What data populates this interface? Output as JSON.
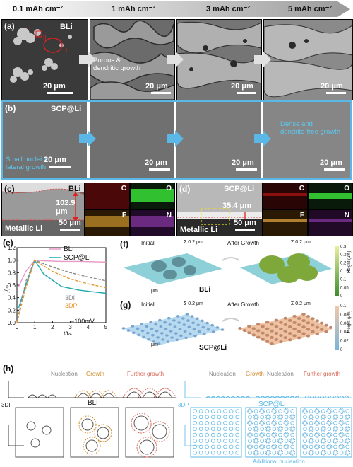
{
  "header": {
    "capacities": [
      "0.1 mAh cm⁻²",
      "1 mAh cm⁻²",
      "3 mAh cm⁻²",
      "5 mAh cm⁻²"
    ]
  },
  "panel_a": {
    "label": "(a)",
    "sample": "BLi",
    "note": "Porous &\ndendritic growth",
    "scale": "20 μm",
    "marks": [
      "I",
      "II",
      "II"
    ]
  },
  "panel_b": {
    "label": "(b)",
    "sample": "SCP@Li",
    "note_start": "Small nuclei &\nlateral growth",
    "note_end": "Dense and\ndendrite-free growth",
    "scale": "20 μm"
  },
  "panel_c": {
    "label": "(c)",
    "sample": "BLi",
    "thickness": "102.9\nμm",
    "substrate": "Metallic Li",
    "scale": "50 μm",
    "elements": [
      "C",
      "O",
      "F",
      "N"
    ]
  },
  "panel_d": {
    "label": "(d)",
    "sample": "SCP@Li",
    "thickness": "35.4 μm",
    "substrate": "Metallic Li",
    "scale": "50 μm",
    "elements": [
      "C",
      "O",
      "F",
      "N"
    ]
  },
  "panel_e": {
    "label": "(e)",
    "annotation": "−100mV",
    "models": [
      "3DI",
      "3DP"
    ],
    "chart_data": {
      "type": "line",
      "xlabel": "t/tₘ",
      "ylabel": "j/jₘ",
      "xlim": [
        0,
        5
      ],
      "ylim": [
        0,
        1.2
      ],
      "xticks": [
        0,
        1,
        2,
        3,
        4,
        5
      ],
      "yticks": [
        0.0,
        0.2,
        0.4,
        0.6,
        0.8,
        1.0,
        1.2
      ],
      "series": [
        {
          "name": "BLi",
          "color": "#e89ac7",
          "x": [
            0.1,
            0.5,
            1.0,
            1.5,
            2.5,
            3.5,
            5.0
          ],
          "y": [
            0.58,
            0.82,
            1.0,
            0.99,
            0.98,
            0.98,
            0.97
          ]
        },
        {
          "name": "SCP@Li",
          "color": "#1fa8b3",
          "x": [
            0.1,
            0.5,
            1.0,
            1.5,
            2.5,
            3.5,
            5.0
          ],
          "y": [
            0.24,
            0.6,
            1.0,
            0.78,
            0.58,
            0.52,
            0.47
          ]
        },
        {
          "name": "3DI",
          "color": "#8a8a8a",
          "dash": true,
          "x": [
            0.0,
            0.5,
            1.0,
            2.0,
            3.0,
            4.0,
            5.0
          ],
          "y": [
            0.0,
            0.66,
            1.0,
            0.89,
            0.8,
            0.73,
            0.67
          ]
        },
        {
          "name": "3DP",
          "color": "#e6962c",
          "dash": true,
          "x": [
            0.0,
            0.5,
            1.0,
            2.0,
            3.0,
            4.0,
            5.0
          ],
          "y": [
            0.0,
            0.55,
            1.0,
            0.82,
            0.7,
            0.62,
            0.56
          ]
        }
      ]
    }
  },
  "panel_f": {
    "label": "(f)",
    "left": "Initial",
    "right": "After Growth",
    "sample": "BLi",
    "zscale": "Σ 0.2 μm",
    "unit": "μm",
    "colorbar_label": "Height (μm)",
    "colorbar_ticks": [
      "0.3",
      "0.25",
      "0.2",
      "0.15",
      "0.1",
      "0.05",
      "0"
    ],
    "colorbar_colors": [
      "#e7f0a0",
      "#3e8d2a"
    ]
  },
  "panel_g": {
    "label": "(g)",
    "left": "Initial",
    "right": "After Growth",
    "sample": "SCP@Li",
    "zscale": "Σ 0.2 μm",
    "unit": "μm",
    "colorbar_label": "Height (μm)",
    "colorbar_ticks": [
      "0.1",
      "0.08",
      "0.06",
      "0.04",
      "0.02",
      "0"
    ],
    "colorbar_colors": [
      "#f2c8a8",
      "#7ab4d8"
    ]
  },
  "panel_h": {
    "label": "(h)",
    "left_steps": [
      "Nucleation",
      "Growth",
      "Further growth"
    ],
    "right_steps": [
      "Nucleation",
      "Growth",
      "Nucleation",
      "Further growth"
    ],
    "left_title": "BLi",
    "right_title": "SCP@Li",
    "left_model": "3DI",
    "right_model": "3DP",
    "additional": "Additional nucleation"
  },
  "colors": {
    "blue_frame": "#5bb8e6",
    "growth_orange": "#d08a2a",
    "further_red": "#d96a5a"
  }
}
